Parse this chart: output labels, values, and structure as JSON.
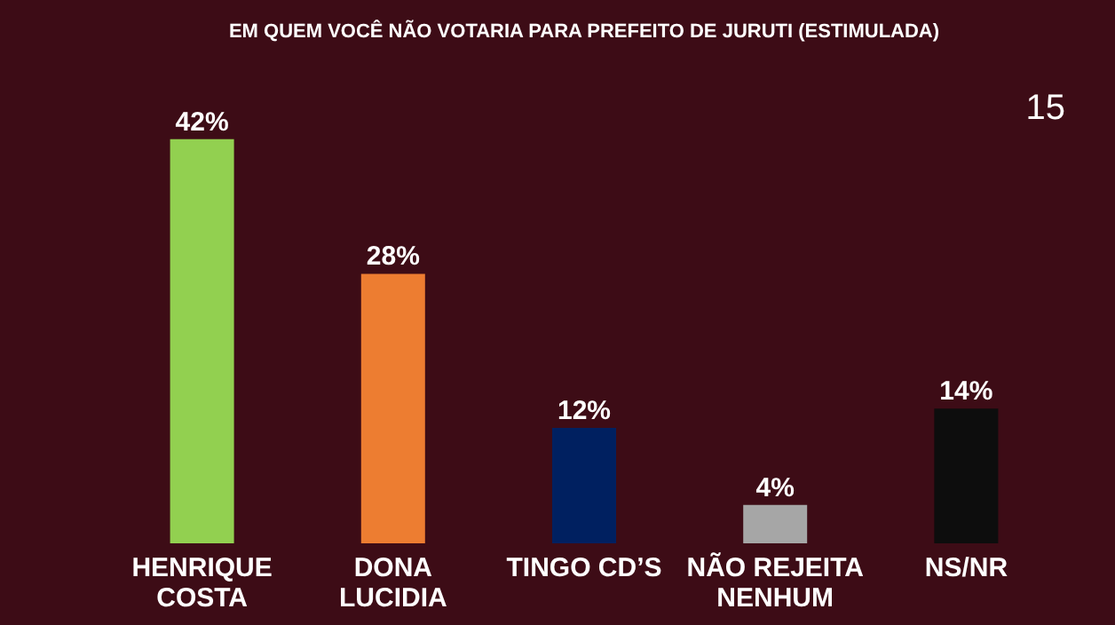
{
  "chart_data": {
    "type": "bar",
    "title": "EM QUEM VOCÊ NÃO VOTARIA PARA PREFEITO DE JURUTI (ESTIMULADA)",
    "categories": [
      "HENRIQUE\nCOSTA",
      "DONA\nLUCIDIA",
      "TINGO CD’S",
      "NÃO REJEITA\nNENHUM",
      "NS/NR"
    ],
    "values": [
      42,
      28,
      12,
      4,
      14
    ],
    "colors": [
      "#92d050",
      "#ed7d31",
      "#002060",
      "#a6a6a6",
      "#0d0d0d"
    ],
    "value_labels": [
      "42%",
      "28%",
      "12%",
      "4%",
      "14%"
    ],
    "annotations": [
      "15"
    ]
  }
}
